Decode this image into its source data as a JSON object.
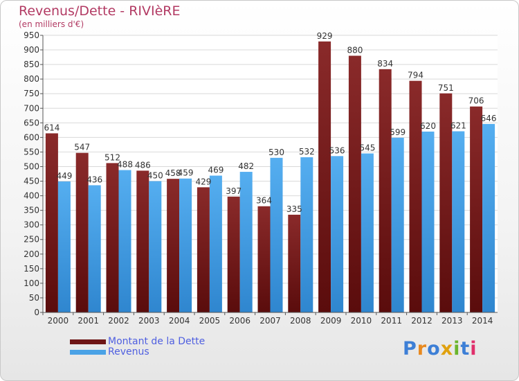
{
  "header": {
    "title": "Revenus/Dette - RIVIèRE",
    "subtitle": "(en milliers d'€)"
  },
  "logo": {
    "text": "Proxiti",
    "letter_colors": [
      "#3d7fd6",
      "#e8891f",
      "#3d7fd6",
      "#e0a10e",
      "#6bb52d",
      "#3d7fd6",
      "#e02f6b"
    ]
  },
  "legend": {
    "placement": "bottom-left",
    "items": [
      {
        "label": "Montant de la Dette",
        "color": "#7a1a1a"
      },
      {
        "label": "Revenus",
        "color": "#4aa2e6"
      }
    ]
  },
  "chart_data": {
    "type": "bar",
    "title": "Revenus/Dette - RIVIèRE",
    "subtitle": "(en milliers d'€)",
    "ylim": [
      0,
      950
    ],
    "ytick_step": 50,
    "grid": true,
    "categories": [
      "2000",
      "2001",
      "2002",
      "2003",
      "2004",
      "2005",
      "2006",
      "2007",
      "2008",
      "2009",
      "2010",
      "2011",
      "2012",
      "2013",
      "2014"
    ],
    "series": [
      {
        "name": "Montant de la Dette",
        "color": "#7a1a1a",
        "values": [
          614,
          547,
          512,
          486,
          458,
          429,
          397,
          364,
          335,
          929,
          880,
          834,
          794,
          751,
          706
        ]
      },
      {
        "name": "Revenus",
        "color": "#4aa2e6",
        "values": [
          449,
          436,
          488,
          450,
          459,
          469,
          482,
          530,
          532,
          536,
          545,
          599,
          620,
          621,
          646
        ]
      }
    ]
  }
}
